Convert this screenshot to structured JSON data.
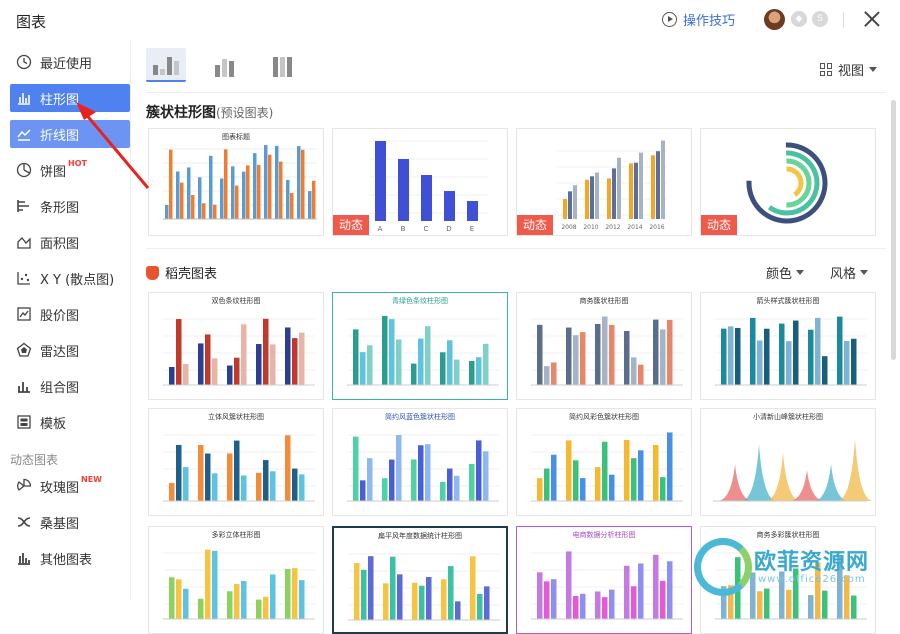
{
  "window": {
    "title": "图表",
    "tips": "操作技巧"
  },
  "sidebar": {
    "items": [
      {
        "label": "最近使用",
        "icon": "clock-icon"
      },
      {
        "label": "柱形图",
        "icon": "column-chart-icon"
      },
      {
        "label": "折线图",
        "icon": "line-chart-icon"
      },
      {
        "label": "饼图",
        "icon": "pie-chart-icon",
        "tag": "HOT"
      },
      {
        "label": "条形图",
        "icon": "bar-chart-icon"
      },
      {
        "label": "面积图",
        "icon": "area-chart-icon"
      },
      {
        "label": "X Y (散点图)",
        "icon": "scatter-chart-icon"
      },
      {
        "label": "股价图",
        "icon": "stock-chart-icon"
      },
      {
        "label": "雷达图",
        "icon": "radar-chart-icon"
      },
      {
        "label": "组合图",
        "icon": "combo-chart-icon"
      },
      {
        "label": "模板",
        "icon": "template-icon"
      }
    ],
    "group_label": "动态图表",
    "dynamic_items": [
      {
        "label": "玫瑰图",
        "icon": "rose-chart-icon",
        "tag": "NEW"
      },
      {
        "label": "桑基图",
        "icon": "sankey-chart-icon"
      },
      {
        "label": "其他图表",
        "icon": "other-chart-icon"
      }
    ]
  },
  "main": {
    "view_label": "视图",
    "preset_title": "簇状柱形图",
    "preset_sub": "(预设图表)",
    "dynamic_badge": "动态",
    "daoke_title": "稻壳图表",
    "filter_color": "颜色",
    "filter_style": "风格",
    "card_titles": {
      "p1": "图表标题",
      "r1c1": "双色条纹柱形图",
      "r1c2": "青绿色条纹柱形图",
      "r1c3": "商务簇状柱形图",
      "r1c4": "箭头样式簇状柱形图",
      "r2c1": "立体风簇状柱形图",
      "r2c2": "简约风蓝色簇状柱形图",
      "r2c3": "简约风彩色簇状柱形图",
      "r2c4": "小清新山峰簇状柱形图",
      "r3c1": "多彩立体柱形图",
      "r3c2": "扁平风年度数据统计柱形图",
      "r3c3": "电商数据分析柱形图",
      "r3c4": "商务多彩簇状柱形图"
    },
    "axis_letters": [
      "A",
      "B",
      "C",
      "D",
      "E"
    ],
    "axis_years": [
      "2008",
      "2010",
      "2012",
      "2014",
      "2016"
    ]
  },
  "watermark": {
    "text": "欧菲资源网",
    "url": "www.office26.com"
  },
  "colors": {
    "accent": "#4f82f0",
    "dynamic_badge": "#ef5a4b"
  }
}
